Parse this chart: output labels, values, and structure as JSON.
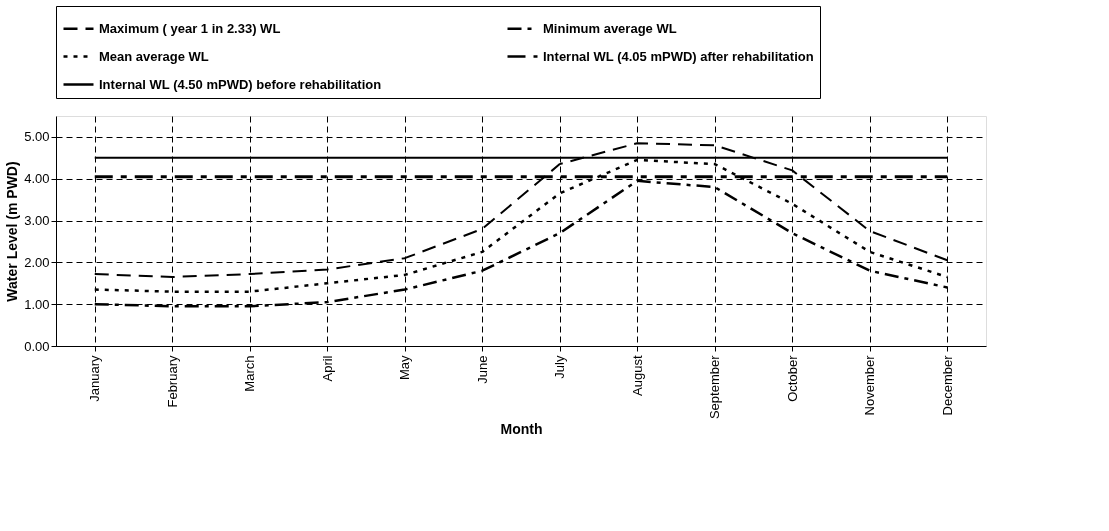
{
  "chart_data": {
    "type": "line",
    "xlabel": "Month",
    "ylabel": "Water Level (m PWD)",
    "categories": [
      "January",
      "February",
      "March",
      "April",
      "May",
      "June",
      "July",
      "August",
      "September",
      "October",
      "November",
      "December"
    ],
    "series": [
      {
        "name": "Maximum ( year 1 in 2.33) WL",
        "color": "#000000",
        "line_style": "dashed",
        "values": [
          1.72,
          1.65,
          1.72,
          1.83,
          2.1,
          2.8,
          4.35,
          4.85,
          4.8,
          4.2,
          2.75,
          2.05
        ]
      },
      {
        "name": "Minimum average WL",
        "color": "#000000",
        "line_style": "dashdot",
        "values": [
          1.0,
          0.95,
          0.95,
          1.05,
          1.35,
          1.8,
          2.7,
          3.95,
          3.8,
          2.7,
          1.8,
          1.4
        ]
      },
      {
        "name": "Mean average WL",
        "color": "#000000",
        "line_style": "dotted",
        "values": [
          1.35,
          1.3,
          1.3,
          1.5,
          1.7,
          2.25,
          3.65,
          4.45,
          4.35,
          3.4,
          2.25,
          1.65
        ]
      },
      {
        "name": "Internal WL (4.05 mPWD) after rehabilitation",
        "color": "#000000",
        "line_style": "dashdot2",
        "values": [
          4.05,
          4.05,
          4.05,
          4.05,
          4.05,
          4.05,
          4.05,
          4.05,
          4.05,
          4.05,
          4.05,
          4.05
        ]
      },
      {
        "name": "Internal WL (4.50 mPWD) before rehabilitation",
        "color": "#000000",
        "line_style": "solid",
        "values": [
          4.5,
          4.5,
          4.5,
          4.5,
          4.5,
          4.5,
          4.5,
          4.5,
          4.5,
          4.5,
          4.5,
          4.5
        ]
      }
    ],
    "ylim": [
      0,
      5.5
    ],
    "yticks": [
      {
        "value": 0,
        "label": "0.00"
      },
      {
        "value": 1,
        "label": "1.00"
      },
      {
        "value": 2,
        "label": "2.00"
      },
      {
        "value": 3,
        "label": "3.00"
      },
      {
        "value": 4,
        "label": "4.00"
      },
      {
        "value": 5,
        "label": "5.00"
      }
    ],
    "grid": true,
    "legend": "top",
    "marker": "none"
  }
}
